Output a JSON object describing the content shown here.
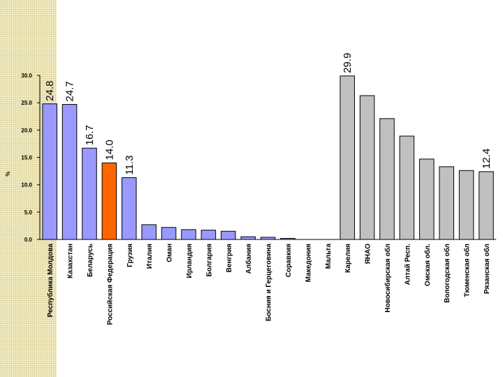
{
  "chart_data": {
    "type": "bar",
    "ylabel": "%",
    "ylim": [
      0,
      30
    ],
    "yticks": [
      "0.0",
      "5.0",
      "10.0",
      "15.0",
      "20.0",
      "25.0",
      "30.0"
    ],
    "grid": false,
    "categories": [
      "Республика Молдова",
      "Казахстан",
      "Беларусь",
      "Российская Федерация",
      "Грузия",
      "Италия",
      "Оман",
      "Ирландия",
      "Болгария",
      "Венгрия",
      "Албания",
      "Босния и Герцеговина",
      "Соравкия",
      "Македония",
      "Мальта",
      "Карелия",
      "ЯНАО",
      "Новосибирская обл",
      "Алтай Респ.",
      "Омская обл.",
      "Вологодская обл",
      "Тюменская обл",
      "Рязанская обл"
    ],
    "values": [
      24.8,
      24.7,
      16.7,
      14.0,
      11.3,
      2.7,
      2.2,
      1.8,
      1.7,
      1.5,
      0.5,
      0.4,
      0.2,
      0.0,
      0.0,
      29.9,
      26.3,
      22.1,
      18.9,
      14.7,
      13.3,
      12.6,
      12.4
    ],
    "data_labels": [
      "24.8",
      "24.7",
      "16.7",
      "14.0",
      "11.3",
      "",
      "",
      "",
      "",
      "",
      "",
      "",
      "",
      "",
      "",
      "29.9",
      "",
      "",
      "",
      "",
      "",
      "",
      "12.4"
    ],
    "colors": {
      "country": "#9999ff",
      "highlight": "#ff6600",
      "region": "#c0c0c0",
      "outline": "#000000",
      "side_strip": "#f2ecc4"
    },
    "bar_colors": [
      "country",
      "country",
      "country",
      "highlight",
      "country",
      "country",
      "country",
      "country",
      "country",
      "country",
      "country",
      "country",
      "country",
      "country",
      "country",
      "region",
      "region",
      "region",
      "region",
      "region",
      "region",
      "region",
      "region"
    ]
  }
}
